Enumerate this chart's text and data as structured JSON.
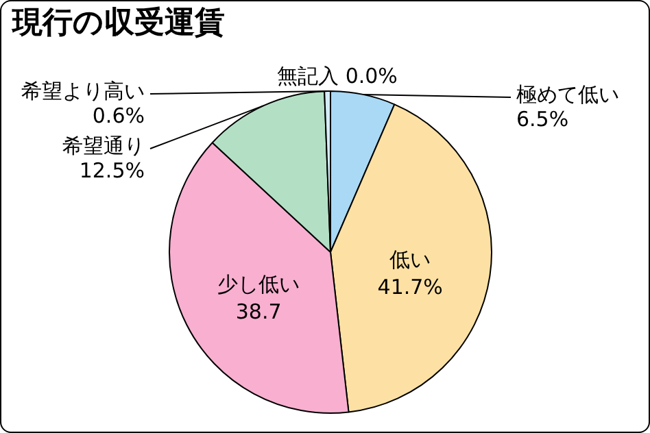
{
  "chart_data": {
    "type": "pie",
    "title": "現行の収受運賃",
    "categories": [
      "無記入",
      "極めて低い",
      "低い",
      "少し低い",
      "希望通り",
      "希望より高い"
    ],
    "values": [
      0.0,
      6.5,
      41.7,
      38.7,
      12.5,
      0.6
    ],
    "value_labels": [
      "0.0%",
      "6.5%",
      "41.7%",
      "38.7",
      "12.5%",
      "0.6%"
    ],
    "colors": [
      "#ffffff",
      "#a9d9f5",
      "#fde1a4",
      "#f8afd0",
      "#b3e0c5",
      "#d4ecf7"
    ],
    "legend": false
  }
}
